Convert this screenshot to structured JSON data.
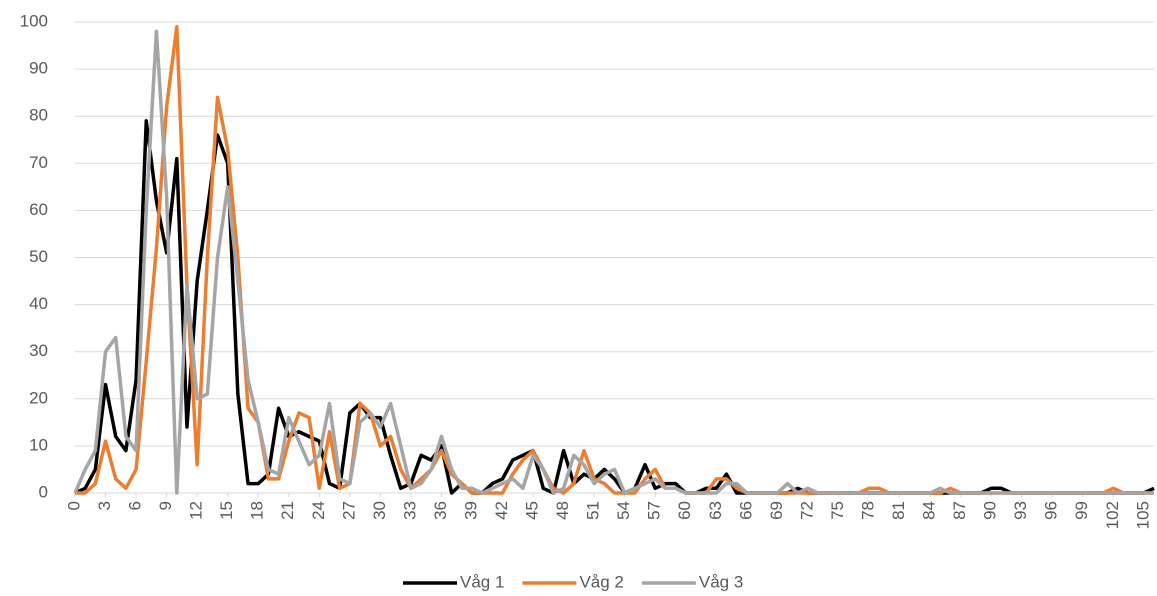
{
  "chart_data": {
    "type": "line",
    "x": [
      0,
      1,
      2,
      3,
      4,
      5,
      6,
      7,
      8,
      9,
      10,
      11,
      12,
      13,
      14,
      15,
      16,
      17,
      18,
      19,
      20,
      21,
      22,
      23,
      24,
      25,
      26,
      27,
      28,
      29,
      30,
      31,
      32,
      33,
      34,
      35,
      36,
      37,
      38,
      39,
      40,
      41,
      42,
      43,
      44,
      45,
      46,
      47,
      48,
      49,
      50,
      51,
      52,
      53,
      54,
      55,
      56,
      57,
      58,
      59,
      60,
      61,
      62,
      63,
      64,
      65,
      66,
      67,
      68,
      69,
      70,
      71,
      72,
      73,
      74,
      75,
      76,
      77,
      78,
      79,
      80,
      81,
      82,
      83,
      84,
      85,
      86,
      87,
      88,
      89,
      90,
      91,
      92,
      93,
      94,
      95,
      96,
      97,
      98,
      99,
      100,
      101,
      102,
      103,
      104,
      105,
      106
    ],
    "xlim": [
      0,
      106
    ],
    "xticks": [
      0,
      3,
      6,
      9,
      12,
      15,
      18,
      21,
      24,
      27,
      30,
      33,
      36,
      39,
      42,
      45,
      48,
      51,
      54,
      57,
      60,
      63,
      66,
      69,
      72,
      75,
      78,
      81,
      84,
      87,
      90,
      93,
      96,
      99,
      102,
      105
    ],
    "ylim": [
      0,
      100
    ],
    "yticks": [
      0,
      10,
      20,
      30,
      40,
      50,
      60,
      70,
      80,
      90,
      100
    ],
    "grid": true,
    "legend": "bottom",
    "series": [
      {
        "name": "Våg 1",
        "color": "#000000",
        "values": [
          0,
          1,
          5,
          23,
          12,
          9,
          24,
          79,
          62,
          51,
          71,
          14,
          45,
          60,
          76,
          70,
          21,
          2,
          2,
          4,
          18,
          12,
          13,
          12,
          11,
          2,
          1,
          17,
          19,
          16,
          16,
          8,
          1,
          2,
          8,
          7,
          10,
          0,
          2,
          0,
          0,
          2,
          3,
          7,
          8,
          9,
          1,
          0,
          9,
          2,
          4,
          3,
          5,
          3,
          0,
          1,
          6,
          1,
          2,
          2,
          0,
          0,
          1,
          1,
          4,
          0,
          0,
          0,
          0,
          0,
          0,
          1,
          0,
          0,
          0,
          0,
          0,
          0,
          0,
          0,
          0,
          0,
          0,
          0,
          0,
          0,
          0,
          0,
          0,
          0,
          1,
          1,
          0,
          0,
          0,
          0,
          0,
          0,
          0,
          0,
          0,
          0,
          0,
          0,
          0,
          0,
          1
        ]
      },
      {
        "name": "Våg 2",
        "color": "#ed7d31",
        "values": [
          0,
          0,
          2,
          11,
          3,
          1,
          5,
          28,
          52,
          82,
          99,
          44,
          6,
          50,
          84,
          73,
          50,
          18,
          15,
          3,
          3,
          11,
          17,
          16,
          1,
          13,
          1,
          2,
          19,
          17,
          10,
          12,
          5,
          1,
          3,
          5,
          9,
          4,
          2,
          0,
          0,
          0,
          0,
          4,
          7,
          9,
          5,
          1,
          0,
          2,
          9,
          3,
          2,
          0,
          0,
          0,
          3,
          5,
          1,
          1,
          0,
          0,
          0,
          3,
          3,
          1,
          0,
          0,
          0,
          0,
          0,
          0,
          0,
          0,
          0,
          0,
          0,
          0,
          1,
          1,
          0,
          0,
          0,
          0,
          0,
          0,
          1,
          0,
          0,
          0,
          0,
          0,
          0,
          0,
          0,
          0,
          0,
          0,
          0,
          0,
          0,
          0,
          1,
          0,
          0,
          0,
          0
        ]
      },
      {
        "name": "Våg 3",
        "color": "#a5a5a5",
        "values": [
          0,
          5,
          9,
          30,
          33,
          12,
          9,
          60,
          98,
          63,
          0,
          44,
          20,
          21,
          50,
          65,
          45,
          24,
          15,
          5,
          4,
          16,
          11,
          6,
          8,
          19,
          3,
          2,
          15,
          17,
          14,
          19,
          10,
          1,
          2,
          5,
          12,
          5,
          1,
          1,
          0,
          1,
          2,
          3,
          1,
          8,
          5,
          0,
          1,
          8,
          6,
          2,
          4,
          5,
          0,
          1,
          2,
          3,
          1,
          1,
          0,
          0,
          0,
          0,
          2,
          2,
          0,
          0,
          0,
          0,
          2,
          0,
          1,
          0,
          0,
          0,
          0,
          0,
          0,
          0,
          0,
          0,
          0,
          0,
          0,
          1,
          0,
          0,
          0,
          0,
          0,
          0,
          0,
          0,
          0,
          0,
          0,
          0,
          0,
          0,
          0,
          0,
          0,
          0,
          0,
          0,
          0
        ]
      }
    ]
  }
}
